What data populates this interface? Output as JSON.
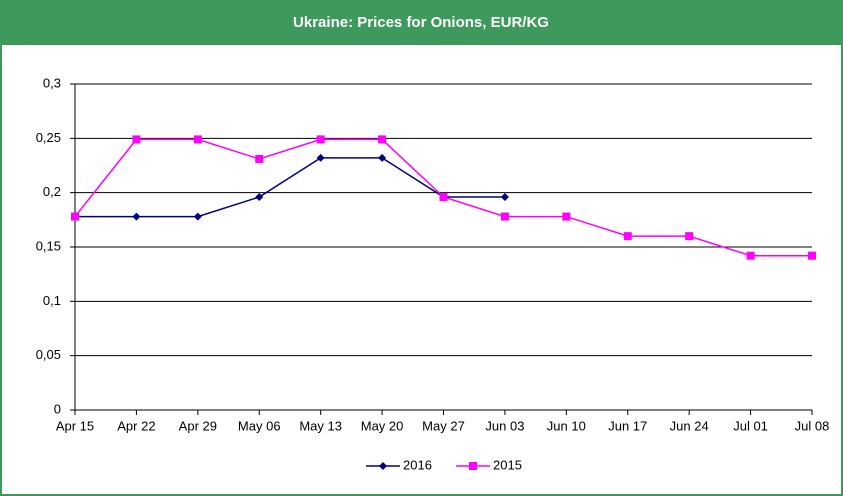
{
  "chart_data": {
    "type": "line",
    "title": "Ukraine: Prices for Onions, EUR/KG",
    "categories": [
      "Apr 15",
      "Apr 22",
      "Apr 29",
      "May 06",
      "May 13",
      "May 20",
      "May 27",
      "Jun 03",
      "Jun 10",
      "Jun 17",
      "Jun 24",
      "Jul 01",
      "Jul 08"
    ],
    "series": [
      {
        "name": "2016",
        "color": "#000080",
        "marker": "diamond",
        "values": [
          0.178,
          0.178,
          0.178,
          0.196,
          0.232,
          0.232,
          0.196,
          0.196,
          null,
          null,
          null,
          null,
          null
        ]
      },
      {
        "name": "2015",
        "color": "#ff00ff",
        "marker": "square",
        "values": [
          0.178,
          0.249,
          0.249,
          0.231,
          0.249,
          0.249,
          0.196,
          0.178,
          0.178,
          0.16,
          0.16,
          0.142,
          0.142
        ]
      }
    ],
    "ylim": [
      0,
      0.3
    ],
    "yticks": [
      0,
      {
        "value": 0.05,
        "label": "0,05"
      },
      {
        "value": 0.1,
        "label": "0,1"
      },
      {
        "value": 0.15,
        "label": "0,15"
      },
      {
        "value": 0.2,
        "label": "0,2"
      },
      {
        "value": 0.25,
        "label": "0,25"
      },
      {
        "value": 0.3,
        "label": "0,3"
      }
    ],
    "grid": true,
    "legend": "bottom"
  }
}
